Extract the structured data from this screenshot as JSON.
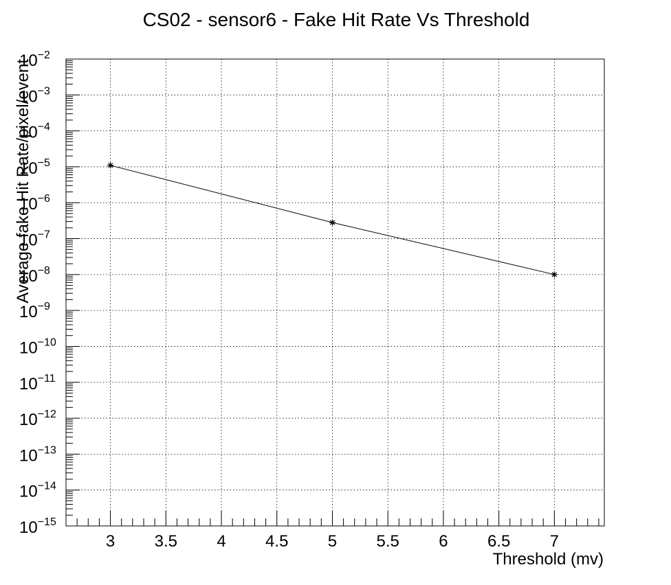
{
  "chart_data": {
    "type": "line",
    "title": "CS02 - sensor6 - Fake Hit Rate Vs Threshold",
    "xlabel": "Threshold (mv)",
    "ylabel": "Average fake Hit Rate/pixel/event",
    "xlim": [
      2.6,
      7.45
    ],
    "ylim": [
      1e-15,
      0.01
    ],
    "yscale": "log",
    "grid": true,
    "x_ticks": [
      3,
      3.5,
      4,
      4.5,
      5,
      5.5,
      6,
      6.5,
      7
    ],
    "x_tick_labels": [
      "3",
      "3.5",
      "4",
      "4.5",
      "5",
      "5.5",
      "6",
      "6.5",
      "7"
    ],
    "y_tick_exponents": [
      -2,
      -3,
      -4,
      -5,
      -6,
      -7,
      -8,
      -9,
      -10,
      -11,
      -12,
      -13,
      -14,
      -15
    ],
    "y_tick_base": "10",
    "series": [
      {
        "marker": "star",
        "x": [
          3,
          5,
          7
        ],
        "y": [
          1.1e-05,
          2.8e-07,
          1e-08
        ]
      }
    ]
  }
}
